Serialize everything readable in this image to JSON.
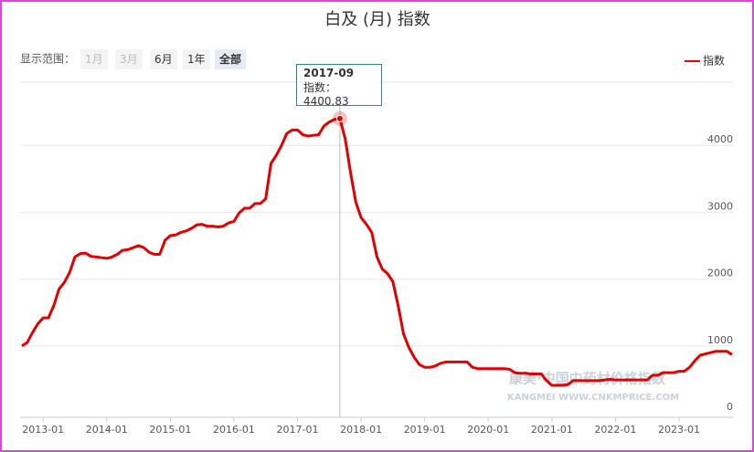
{
  "chart_data": {
    "type": "line",
    "title": "白及 (月) 指数",
    "range_label": "显示范围：",
    "range_buttons": [
      "1月",
      "3月",
      "6月",
      "1年",
      "全部"
    ],
    "watermark": [
      "康美·中国中药材价格指数",
      "KANGMEI WWW.CNKMPRICE.COM"
    ],
    "tooltip": {
      "title": "2017-09",
      "text": "指数：4400.83",
      "index": 60
    },
    "x": [
      "2012-09",
      "2012-10",
      "2012-11",
      "2012-12",
      "2013-01",
      "2013-02",
      "2013-03",
      "2013-04",
      "2013-05",
      "2013-06",
      "2013-07",
      "2013-08",
      "2013-09",
      "2013-10",
      "2013-11",
      "2013-12",
      "2014-01",
      "2014-02",
      "2014-03",
      "2014-04",
      "2014-05",
      "2014-06",
      "2014-07",
      "2014-08",
      "2014-09",
      "2014-10",
      "2014-11",
      "2014-12",
      "2015-01",
      "2015-02",
      "2015-03",
      "2015-04",
      "2015-05",
      "2015-06",
      "2015-07",
      "2015-08",
      "2015-09",
      "2015-10",
      "2015-11",
      "2015-12",
      "2016-01",
      "2016-02",
      "2016-03",
      "2016-04",
      "2016-05",
      "2016-06",
      "2016-07",
      "2016-08",
      "2016-09",
      "2016-10",
      "2016-11",
      "2016-12",
      "2017-01",
      "2017-02",
      "2017-03",
      "2017-04",
      "2017-05",
      "2017-06",
      "2017-07",
      "2017-08",
      "2017-09",
      "2017-10",
      "2017-11",
      "2017-12",
      "2018-01",
      "2018-02",
      "2018-03",
      "2018-04",
      "2018-05",
      "2018-06",
      "2018-07",
      "2018-08",
      "2018-09",
      "2018-10",
      "2018-11",
      "2018-12",
      "2019-01",
      "2019-02",
      "2019-03",
      "2019-04",
      "2019-05",
      "2019-06",
      "2019-07",
      "2019-08",
      "2019-09",
      "2019-10",
      "2019-11",
      "2019-12",
      "2020-01",
      "2020-02",
      "2020-03",
      "2020-04",
      "2020-05",
      "2020-06",
      "2020-07",
      "2020-08",
      "2020-09",
      "2020-10",
      "2020-11",
      "2020-12",
      "2021-01",
      "2021-02",
      "2021-03",
      "2021-04",
      "2021-05",
      "2021-06",
      "2021-07",
      "2021-08",
      "2021-09",
      "2021-10",
      "2021-11",
      "2021-12",
      "2022-01",
      "2022-02",
      "2022-03",
      "2022-04",
      "2022-05",
      "2022-06",
      "2022-07",
      "2022-08",
      "2022-09",
      "2022-10",
      "2022-11",
      "2022-12",
      "2023-01",
      "2023-02",
      "2023-03",
      "2023-04",
      "2023-05",
      "2023-06",
      "2023-07",
      "2023-08",
      "2023-09",
      "2023-10",
      "2023-11"
    ],
    "series": [
      {
        "name": "指数",
        "color": "#e00000",
        "values": [
          1000,
          1050,
          1200,
          1330,
          1420,
          1420,
          1600,
          1850,
          1950,
          2100,
          2330,
          2380,
          2390,
          2340,
          2330,
          2320,
          2310,
          2330,
          2370,
          2430,
          2440,
          2470,
          2500,
          2470,
          2400,
          2370,
          2370,
          2580,
          2650,
          2660,
          2700,
          2720,
          2760,
          2810,
          2820,
          2790,
          2790,
          2780,
          2790,
          2840,
          2860,
          2990,
          3060,
          3060,
          3130,
          3130,
          3200,
          3730,
          3850,
          4000,
          4180,
          4230,
          4230,
          4160,
          4140,
          4150,
          4160,
          4290,
          4350,
          4390,
          4400.83,
          4100,
          3600,
          3150,
          2920,
          2820,
          2700,
          2330,
          2150,
          2080,
          1960,
          1600,
          1180,
          980,
          830,
          720,
          680,
          680,
          700,
          740,
          760,
          760,
          760,
          760,
          760,
          680,
          660,
          660,
          660,
          660,
          660,
          660,
          650,
          600,
          590,
          590,
          580,
          580,
          580,
          480,
          410,
          410,
          410,
          420,
          480,
          480,
          480,
          480,
          480,
          480,
          490,
          500,
          490,
          490,
          490,
          490,
          490,
          490,
          490,
          560,
          560,
          600,
          600,
          600,
          620,
          620,
          680,
          780,
          860,
          880,
          900,
          920,
          920,
          920,
          870
        ]
      }
    ],
    "xticks": [
      "2013-01",
      "2014-01",
      "2015-01",
      "2016-01",
      "2017-01",
      "2018-01",
      "2019-01",
      "2020-01",
      "2021-01",
      "2022-01",
      "2023-01"
    ],
    "ylim": [
      0,
      5000
    ],
    "yticks": [
      0,
      1000,
      2000,
      3000,
      4000
    ],
    "grid": true,
    "legend": "top-right"
  }
}
